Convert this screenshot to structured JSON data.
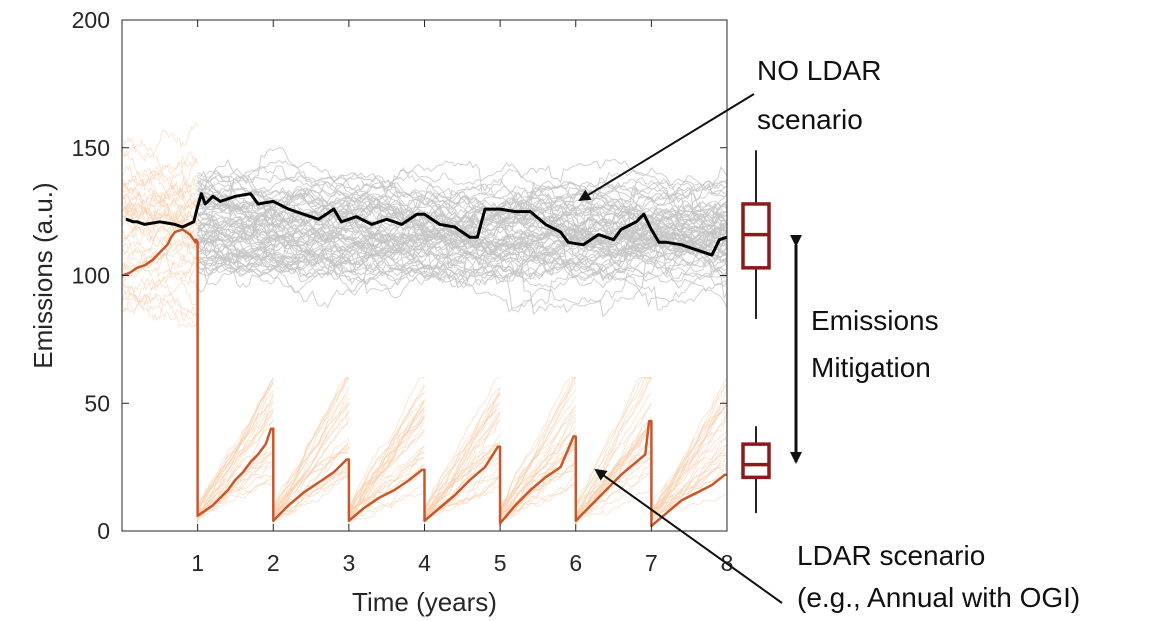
{
  "chart_data": {
    "type": "line",
    "xlabel": "Time (years)",
    "ylabel": "Emissions (a.u.)",
    "xlim": [
      0,
      8
    ],
    "ylim": [
      0,
      200
    ],
    "x_ticks": [
      1,
      2,
      3,
      4,
      5,
      6,
      7,
      8
    ],
    "y_ticks": [
      0,
      50,
      100,
      150,
      200
    ],
    "grid": false,
    "colors": {
      "no_ldar_ensemble": "#c4c4c4",
      "no_ldar_highlight": "#000000",
      "ldar_ensemble": "#f7cfad",
      "ldar_highlight": "#c8582b",
      "boxplot": "#8b1a1a",
      "annotation": "#111111"
    },
    "series": [
      {
        "role": "no-ldar-highlight",
        "x": [
          0.05,
          0.06,
          0.15,
          0.2,
          0.3,
          0.5,
          0.7,
          0.8,
          0.95,
          1.0,
          1.05,
          1.1,
          1.2,
          1.3,
          1.5,
          1.7,
          1.8,
          2.0,
          2.2,
          2.4,
          2.6,
          2.8,
          2.9,
          3.1,
          3.3,
          3.5,
          3.7,
          3.9,
          4.0,
          4.2,
          4.4,
          4.5,
          4.6,
          4.7,
          4.8,
          5.0,
          5.2,
          5.4,
          5.6,
          5.8,
          5.9,
          6.1,
          6.3,
          6.5,
          6.6,
          6.8,
          6.9,
          7.0,
          7.1,
          7.2,
          7.4,
          7.6,
          7.8,
          7.9,
          8.0
        ],
        "y": [
          122,
          122,
          121,
          121,
          120,
          121,
          120,
          119,
          121,
          127,
          132,
          128,
          131,
          129,
          131,
          132,
          128,
          129,
          126,
          124,
          122,
          126,
          121,
          123,
          120,
          122,
          120,
          124,
          124,
          120,
          119,
          117,
          115,
          115,
          126,
          126,
          125,
          125,
          120,
          117,
          113,
          112,
          116,
          114,
          118,
          121,
          124,
          118,
          113,
          113,
          112,
          110,
          108,
          114,
          115
        ]
      },
      {
        "role": "ldar-highlight",
        "x": [
          0.0,
          0.1,
          0.2,
          0.3,
          0.4,
          0.5,
          0.6,
          0.65,
          0.7,
          0.8,
          0.9,
          0.95,
          0.97,
          0.98,
          1.0,
          1.0,
          1.1,
          1.2,
          1.3,
          1.4,
          1.5,
          1.6,
          1.7,
          1.8,
          1.9,
          1.97,
          2.0,
          2.0,
          2.2,
          2.4,
          2.6,
          2.8,
          2.97,
          3.0,
          3.0,
          3.2,
          3.4,
          3.6,
          3.8,
          3.97,
          4.0,
          4.0,
          4.2,
          4.4,
          4.6,
          4.8,
          4.97,
          5.0,
          5.0,
          5.2,
          5.4,
          5.6,
          5.8,
          5.97,
          6.0,
          6.0,
          6.2,
          6.4,
          6.6,
          6.8,
          6.92,
          6.97,
          7.0,
          7.0,
          7.2,
          7.4,
          7.6,
          7.8,
          7.97,
          8.0
        ],
        "y": [
          100,
          101,
          103,
          104,
          106,
          109,
          112,
          115,
          117,
          118,
          116,
          114,
          113,
          114,
          113,
          6,
          8,
          10,
          13,
          16,
          20,
          23,
          27,
          30,
          34,
          40,
          40,
          4,
          10,
          15,
          19,
          23,
          28,
          28,
          4,
          9,
          13,
          16,
          20,
          24,
          24,
          4,
          9,
          14,
          20,
          25,
          33,
          33,
          3,
          10,
          16,
          21,
          25,
          37,
          37,
          4,
          10,
          16,
          22,
          27,
          30,
          43,
          43,
          2,
          7,
          12,
          15,
          18,
          22,
          22
        ]
      }
    ],
    "boxplots": [
      {
        "label": "NO LDAR",
        "q1": 103,
        "median": 116,
        "q3": 128,
        "whisker_low": 83,
        "whisker_high": 149
      },
      {
        "label": "LDAR",
        "q1": 21,
        "median": 26,
        "q3": 34,
        "whisker_low": 7,
        "whisker_high": 41
      }
    ],
    "annotations": {
      "no_ldar": [
        "NO LDAR",
        "scenario"
      ],
      "ldar": [
        "LDAR scenario",
        "(e.g., Annual with OGI)"
      ],
      "mitigation": [
        "Emissions",
        "Mitigation"
      ]
    }
  }
}
